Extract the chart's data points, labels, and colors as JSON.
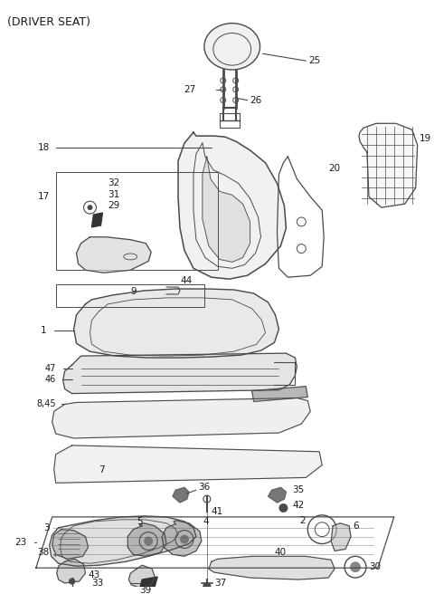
{
  "title": "(DRIVER SEAT)",
  "bg_color": "#ffffff",
  "lc": "#4a4a4a",
  "tc": "#1a1a1a",
  "fig_width": 4.8,
  "fig_height": 6.56,
  "dpi": 100
}
